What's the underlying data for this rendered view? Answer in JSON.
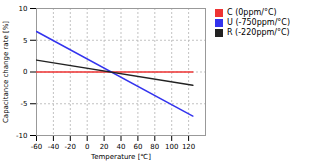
{
  "chart_data": {
    "type": "line",
    "xlabel": "Temperature [℃]",
    "ylabel": "Capacitance change rate [%]",
    "x": [
      -60,
      125
    ],
    "series": [
      {
        "name": "C (0ppm/°C)",
        "color": "#ee3333",
        "values": [
          0.0,
          0.0
        ]
      },
      {
        "name": "U (-750ppm/°C)",
        "color": "#3333ee",
        "values": [
          6.375,
          -6.9375
        ]
      },
      {
        "name": "R (-220ppm/°C)",
        "color": "#222222",
        "values": [
          1.87,
          -2.09
        ]
      }
    ],
    "xlim": [
      -60,
      140
    ],
    "ylim": [
      -10,
      10
    ],
    "xticks": [
      -60,
      -40,
      -20,
      0,
      20,
      40,
      60,
      80,
      100,
      120
    ],
    "yticks": [
      -10,
      -5,
      0,
      5,
      10
    ],
    "grid": true,
    "legend": "right"
  }
}
